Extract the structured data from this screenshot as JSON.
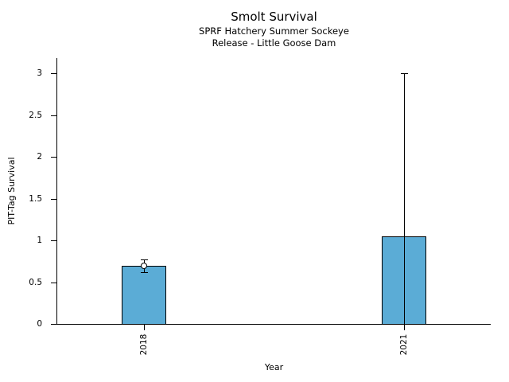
{
  "figure": {
    "title": "Smolt Survival",
    "subtitle_line1": "SPRF Hatchery Summer Sockeye",
    "subtitle_line2": "Release - Little Goose Dam"
  },
  "chart_data": {
    "type": "bar",
    "title": "Smolt Survival",
    "subtitle": [
      "SPRF Hatchery Summer Sockeye",
      "Release - Little Goose Dam"
    ],
    "xlabel": "Year",
    "ylabel": "PIT-Tag Survival",
    "categories": [
      "2018",
      "2021"
    ],
    "values": [
      0.7,
      1.05
    ],
    "error_low": [
      0.62,
      0.0
    ],
    "error_high": [
      0.77,
      3.0
    ],
    "markers": [
      {
        "category_index": 0,
        "value": 0.7,
        "style": "open-circle"
      }
    ],
    "yticks": [
      0,
      0.5,
      1,
      1.5,
      2,
      2.5,
      3
    ],
    "ylim": [
      0,
      3.18
    ],
    "grid": false,
    "legend": null,
    "bar_color": "#5BACD6",
    "bar_edge_color": "#000000",
    "axis_color": "#000000",
    "text_color": "#000000",
    "background_color": "#FFFFFF"
  }
}
